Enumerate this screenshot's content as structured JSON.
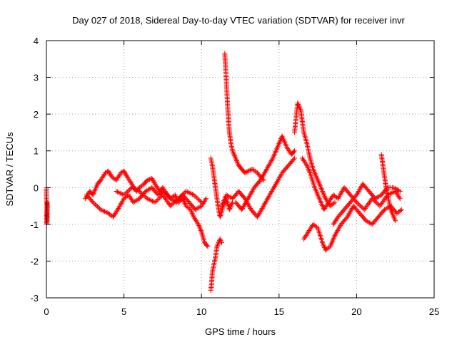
{
  "chart_data": {
    "type": "scatter",
    "title": "Day 027 of 2018, Sidereal Day-to-day VTEC variation (SDTVAR) for receiver invr",
    "xlabel": "GPS time / hours",
    "ylabel": "SDTVAR / TECUs",
    "xlim": [
      0,
      25
    ],
    "ylim": [
      -3,
      4
    ],
    "x_ticks": [
      0,
      5,
      10,
      15,
      20,
      25
    ],
    "y_ticks": [
      -3,
      -2,
      -1,
      0,
      1,
      2,
      3,
      4
    ],
    "x_tick_labels": [
      "0",
      "5",
      "10",
      "15",
      "20",
      "25"
    ],
    "y_tick_labels": [
      "-3",
      "-2",
      "-1",
      "0",
      "1",
      "2",
      "3",
      "4"
    ],
    "grid": true,
    "marker": "+",
    "series": [
      {
        "name": "SDTVAR",
        "color": "#ff0000",
        "segments": [
          {
            "x": [
              0.0,
              0.0,
              0.05,
              0.05,
              0.0,
              0.05
            ],
            "y": [
              0.0,
              -0.3,
              -0.5,
              -0.9,
              -1.0,
              -0.4
            ]
          },
          {
            "x": [
              2.5,
              2.8,
              3.0,
              3.3,
              3.5,
              3.8,
              4.0,
              4.2,
              4.5,
              4.8,
              5.0,
              5.2,
              5.5,
              5.8,
              6.0,
              6.3,
              6.5,
              6.8,
              7.0,
              7.3,
              7.5,
              7.8,
              8.0,
              8.3,
              8.5,
              8.8,
              9.0,
              9.3,
              9.5,
              9.8,
              10.0,
              10.2,
              10.4
            ],
            "y": [
              -0.3,
              -0.1,
              -0.2,
              0.1,
              0.2,
              0.4,
              0.45,
              0.3,
              0.2,
              0.4,
              0.45,
              0.3,
              0.1,
              -0.1,
              0.0,
              0.1,
              0.2,
              0.25,
              0.1,
              -0.1,
              0.0,
              -0.2,
              -0.3,
              -0.2,
              -0.4,
              -0.3,
              -0.5,
              -0.6,
              -0.8,
              -1.0,
              -1.2,
              -1.5,
              -1.6
            ]
          },
          {
            "x": [
              2.6,
              3.0,
              3.5,
              4.0,
              4.3,
              4.6,
              5.0,
              5.3,
              5.6,
              6.0,
              6.4,
              6.8,
              7.2,
              7.6,
              8.0,
              8.4,
              8.8,
              9.2,
              9.6,
              10.0,
              10.3
            ],
            "y": [
              -0.2,
              -0.4,
              -0.6,
              -0.7,
              -0.8,
              -0.6,
              -0.3,
              -0.2,
              -0.4,
              -0.3,
              -0.1,
              0.0,
              -0.2,
              -0.1,
              -0.3,
              -0.4,
              -0.2,
              -0.4,
              -0.6,
              -0.5,
              -0.3
            ]
          },
          {
            "x": [
              4.5,
              5.0,
              5.5,
              6.0,
              6.5,
              7.0,
              7.5,
              8.0,
              8.5,
              9.0,
              9.5,
              10.0
            ],
            "y": [
              -0.1,
              -0.2,
              0.0,
              -0.1,
              -0.3,
              -0.4,
              -0.2,
              -0.5,
              -0.3,
              -0.1,
              -0.2,
              -0.4
            ]
          },
          {
            "x": [
              10.6,
              10.65,
              10.7,
              10.8,
              10.9,
              11.0,
              11.1,
              11.2,
              11.3
            ],
            "y": [
              -2.8,
              -2.6,
              -2.3,
              -2.1,
              -1.9,
              -1.6,
              -1.5,
              -1.4,
              -1.5
            ]
          },
          {
            "x": [
              10.6,
              10.7,
              10.8,
              10.9,
              11.0,
              11.1,
              11.2,
              11.4,
              11.6,
              11.8,
              12.0
            ],
            "y": [
              0.8,
              0.6,
              0.3,
              0.0,
              -0.3,
              -0.6,
              -0.8,
              -0.5,
              -0.3,
              -0.6,
              -0.4
            ]
          },
          {
            "x": [
              11.5,
              11.55,
              11.6,
              11.65,
              11.7,
              11.75,
              11.8,
              11.9,
              12.0,
              12.1,
              12.2,
              12.4,
              12.6,
              12.8,
              13.0,
              13.3,
              13.6,
              14.0
            ],
            "y": [
              3.65,
              3.3,
              2.9,
              2.5,
              2.1,
              1.8,
              1.5,
              1.2,
              1.0,
              0.9,
              0.8,
              0.6,
              0.5,
              0.4,
              0.45,
              0.5,
              0.4,
              0.2
            ]
          },
          {
            "x": [
              11.3,
              11.6,
              12.0,
              12.4,
              12.8,
              13.2,
              13.6,
              14.0,
              14.4,
              14.8,
              15.2,
              15.6,
              16.0
            ],
            "y": [
              -0.5,
              -0.2,
              -0.3,
              -0.1,
              -0.3,
              -0.6,
              -0.8,
              -0.5,
              -0.2,
              0.1,
              0.4,
              0.6,
              0.8
            ]
          },
          {
            "x": [
              12.2,
              12.6,
              13.0,
              13.4,
              13.8,
              14.2,
              14.6,
              15.0,
              15.2,
              15.5,
              15.8,
              16.0
            ],
            "y": [
              -0.4,
              -0.6,
              -0.3,
              0.0,
              0.2,
              0.5,
              0.8,
              1.2,
              1.4,
              1.1,
              0.9,
              1.0
            ]
          },
          {
            "x": [
              16.0,
              16.1,
              16.2,
              16.3,
              16.4,
              16.5,
              16.6,
              16.8,
              17.0,
              17.2,
              17.5,
              17.8,
              18.0,
              18.3,
              18.6
            ],
            "y": [
              1.5,
              1.9,
              2.3,
              2.2,
              2.1,
              1.8,
              1.5,
              1.2,
              0.8,
              0.5,
              0.2,
              -0.1,
              -0.3,
              -0.5,
              -0.4
            ]
          },
          {
            "x": [
              16.5,
              16.8,
              17.0,
              17.3,
              17.6,
              17.9,
              18.2,
              18.5,
              18.8,
              19.2,
              19.6,
              20.0,
              20.5,
              21.0,
              21.5,
              22.0,
              22.5,
              22.8
            ],
            "y": [
              0.8,
              0.6,
              0.4,
              0.0,
              -0.3,
              -0.6,
              -0.4,
              -0.2,
              -0.3,
              0.0,
              -0.2,
              -0.4,
              -0.6,
              -0.3,
              -0.5,
              -0.2,
              -0.1,
              -0.3
            ]
          },
          {
            "x": [
              16.6,
              16.9,
              17.2,
              17.5,
              17.8,
              18.0,
              18.3,
              18.6,
              19.0,
              19.4,
              19.8,
              20.2,
              20.6,
              21.0,
              21.4,
              21.8,
              22.2,
              22.6,
              22.9
            ],
            "y": [
              -1.4,
              -1.2,
              -1.0,
              -1.1,
              -1.5,
              -1.7,
              -1.6,
              -1.3,
              -1.0,
              -0.8,
              -0.5,
              -0.7,
              -0.9,
              -1.0,
              -0.8,
              -0.6,
              -0.5,
              -0.7,
              -0.6
            ]
          },
          {
            "x": [
              18.5,
              18.8,
              19.2,
              19.6,
              20.0,
              20.4,
              20.8,
              21.2,
              21.6,
              22.0,
              22.4,
              22.8
            ],
            "y": [
              -1.0,
              -0.8,
              -0.6,
              -0.4,
              -0.2,
              0.1,
              -0.1,
              -0.3,
              -0.2,
              0.0,
              0.0,
              -0.1
            ]
          },
          {
            "x": [
              21.6,
              21.7,
              21.8,
              21.9,
              22.0,
              22.2,
              22.5
            ],
            "y": [
              0.9,
              0.6,
              0.3,
              0.0,
              -0.2,
              -0.6,
              -0.9
            ]
          }
        ]
      }
    ]
  }
}
